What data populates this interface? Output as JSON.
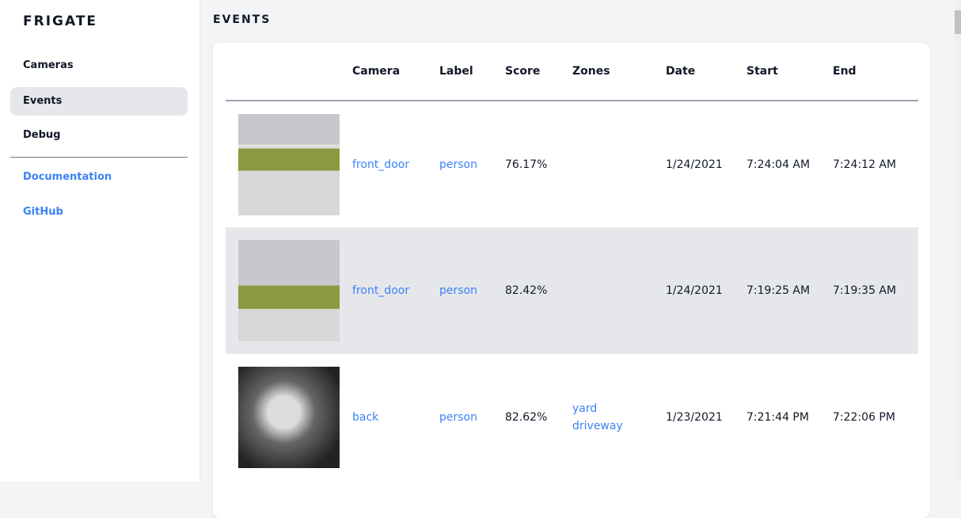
{
  "brand": "FRIGATE",
  "nav": [
    {
      "label": "Cameras"
    },
    {
      "label": "Events",
      "active": true
    },
    {
      "label": "Debug"
    }
  ],
  "links": [
    {
      "label": "Documentation"
    },
    {
      "label": "GitHub"
    }
  ],
  "page_title": "EVENTS",
  "columns": [
    "",
    "Camera",
    "Label",
    "Score",
    "Zones",
    "Date",
    "Start",
    "End"
  ],
  "events": [
    {
      "camera": "front_door",
      "label": "person",
      "score": "76.17%",
      "zones": [
        "",
        ""
      ],
      "date": "1/24/2021",
      "start": "7:24:04 AM",
      "end": "7:24:12 AM"
    },
    {
      "camera": "front_door",
      "label": "person",
      "score": "82.42%",
      "zones": [
        "",
        ""
      ],
      "date": "1/24/2021",
      "start": "7:19:25 AM",
      "end": "7:19:35 AM"
    },
    {
      "camera": "back",
      "label": "person",
      "score": "82.62%",
      "zones": [
        "yard",
        "driveway"
      ],
      "date": "1/23/2021",
      "start": "7:21:44 PM",
      "end": "7:22:06 PM"
    }
  ]
}
